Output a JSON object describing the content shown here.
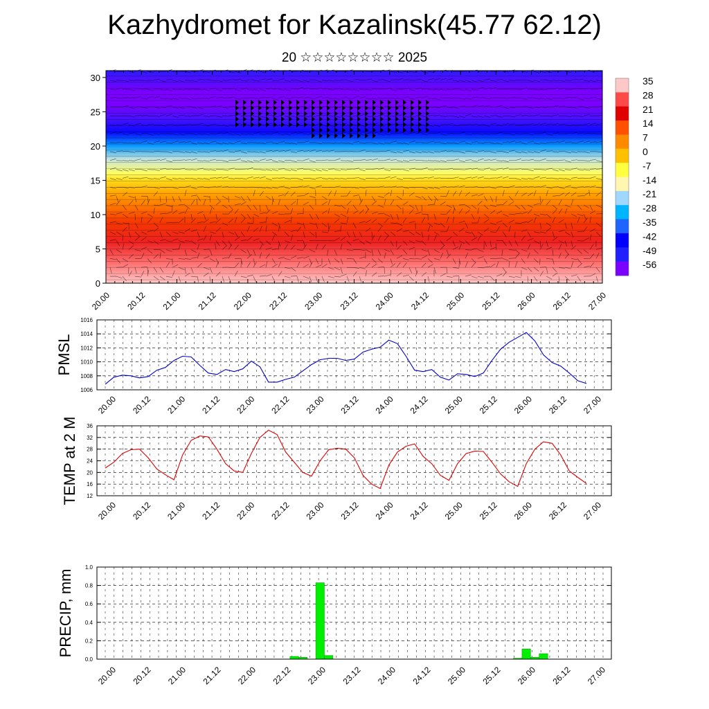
{
  "title": "Kazhydromet for Kazalinsk(45.77 62.12)",
  "subtitle": "20 ☆☆☆☆☆☆☆☆ 2025",
  "x_tick_labels": [
    "20.00",
    "20.12",
    "21.00",
    "21.12",
    "22.00",
    "22.12",
    "23.00",
    "23.12",
    "24.00",
    "24.12",
    "25.00",
    "25.12",
    "26.00",
    "26.12",
    "27.00"
  ],
  "chart_data": [
    {
      "type": "heatmap",
      "panel": "cross-section",
      "y_ticks": [
        0,
        5,
        10,
        15,
        20,
        25,
        30
      ],
      "ylim": [
        0,
        31
      ],
      "colorbar": {
        "labels": [
          "35",
          "28",
          "21",
          "14",
          "7",
          "0",
          "-7",
          "-14",
          "-21",
          "-28",
          "-35",
          "-42",
          "-49",
          "-56"
        ],
        "colors": [
          "#ffc8c8",
          "#ff4a4a",
          "#e00000",
          "#ff5000",
          "#ff8a00",
          "#ffc000",
          "#ffff40",
          "#fff7b0",
          "#9fd7ff",
          "#00b4ff",
          "#1e64ff",
          "#0000ff",
          "#2020ff",
          "#7a00ff"
        ]
      },
      "temperature_by_level": {
        "levels": [
          0,
          3,
          6,
          9,
          11,
          13,
          15,
          16,
          18,
          20,
          22,
          24,
          26,
          28,
          31
        ],
        "values": [
          35,
          30,
          24,
          16,
          10,
          4,
          -3,
          -9,
          -18,
          -30,
          -44,
          -52,
          -58,
          -56,
          -50
        ]
      }
    },
    {
      "type": "line",
      "panel": "pmsl",
      "ylabel": "PMSL",
      "ylim": [
        1006,
        1016
      ],
      "y_ticks": [
        1006,
        1008,
        1010,
        1012,
        1014,
        1016
      ],
      "series": [
        {
          "color": "#0000cc",
          "values": [
            1006.8,
            1007.8,
            1008.1,
            1008.0,
            1007.7,
            1007.9,
            1008.8,
            1009.2,
            1010.2,
            1010.8,
            1010.7,
            1009.5,
            1008.4,
            1008.2,
            1008.9,
            1008.6,
            1009.0,
            1010.1,
            1009.3,
            1007.1,
            1007.1,
            1007.5,
            1007.8,
            1008.7,
            1009.6,
            1010.3,
            1010.5,
            1010.5,
            1010.2,
            1010.4,
            1011.4,
            1011.8,
            1012.1,
            1013.1,
            1012.6,
            1010.8,
            1008.8,
            1008.6,
            1008.9,
            1007.8,
            1007.4,
            1008.3,
            1008.2,
            1007.9,
            1008.4,
            1010.2,
            1011.8,
            1012.8,
            1013.5,
            1014.2,
            1013.0,
            1011.0,
            1009.9,
            1009.4,
            1008.4,
            1007.3,
            1006.9
          ]
        }
      ]
    },
    {
      "type": "line",
      "panel": "temp2m",
      "ylabel": "TEMP at 2 M",
      "ylim": [
        12,
        36
      ],
      "y_ticks": [
        12,
        16,
        20,
        24,
        28,
        32,
        36
      ],
      "series": [
        {
          "color": "#dd0000",
          "values": [
            21.5,
            23.5,
            26.5,
            27.8,
            28.0,
            25.0,
            21.2,
            19.2,
            17.5,
            26.0,
            31.0,
            32.5,
            32.2,
            28.0,
            23.0,
            20.5,
            20.0,
            26.5,
            32.0,
            34.5,
            33.0,
            27.0,
            23.5,
            20.0,
            18.7,
            24.0,
            27.8,
            28.3,
            28.0,
            25.0,
            19.0,
            16.0,
            14.5,
            22.5,
            27.0,
            29.0,
            29.8,
            25.5,
            23.0,
            19.0,
            17.3,
            23.0,
            26.5,
            27.3,
            27.2,
            23.5,
            19.5,
            16.8,
            15.2,
            23.0,
            28.0,
            30.5,
            30.0,
            26.0,
            20.5,
            18.3,
            16.2
          ]
        }
      ]
    },
    {
      "type": "bar",
      "panel": "precip",
      "ylabel": "PRECIP, mm",
      "ylim": [
        0,
        1.0
      ],
      "y_ticks": [
        "0.0",
        "0.2",
        "0.4",
        "0.6",
        "0.8",
        "1.0"
      ],
      "color": "#00ee00",
      "values": [
        0,
        0,
        0,
        0,
        0,
        0,
        0,
        0,
        0,
        0,
        0,
        0,
        0,
        0,
        0,
        0,
        0,
        0,
        0,
        0,
        0,
        0,
        0.03,
        0.02,
        0,
        0.83,
        0.04,
        0,
        0,
        0,
        0,
        0,
        0,
        0,
        0,
        0,
        0,
        0,
        0,
        0,
        0,
        0,
        0,
        0,
        0,
        0,
        0,
        0,
        0.01,
        0.11,
        0.02,
        0.06,
        0,
        0,
        0,
        0,
        0
      ]
    }
  ]
}
